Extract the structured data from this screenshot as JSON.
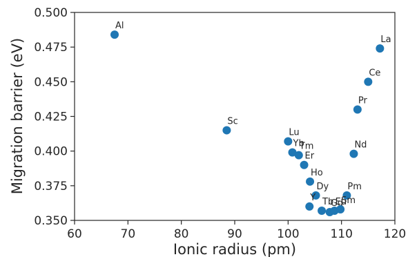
{
  "chart_data": {
    "type": "scatter",
    "title": "",
    "xlabel": "Ionic radius (pm)",
    "ylabel": "Migration barrier (eV)",
    "xlim": [
      60,
      120
    ],
    "ylim": [
      0.35,
      0.5
    ],
    "xticks": [
      60,
      70,
      80,
      90,
      100,
      110,
      120
    ],
    "yticks": [
      0.35,
      0.375,
      0.4,
      0.425,
      0.45,
      0.475,
      0.5
    ],
    "ytick_labels": [
      "0.350",
      "0.375",
      "0.400",
      "0.425",
      "0.450",
      "0.475",
      "0.500"
    ],
    "grid": false,
    "color": "#1f77b4",
    "points": [
      {
        "label": "Al",
        "x": 67.5,
        "y": 0.484
      },
      {
        "label": "La",
        "x": 117.2,
        "y": 0.474
      },
      {
        "label": "Ce",
        "x": 115.0,
        "y": 0.45
      },
      {
        "label": "Pr",
        "x": 113.0,
        "y": 0.43
      },
      {
        "label": "Sc",
        "x": 88.5,
        "y": 0.415
      },
      {
        "label": "Lu",
        "x": 100.0,
        "y": 0.407
      },
      {
        "label": "Yb",
        "x": 100.8,
        "y": 0.399
      },
      {
        "label": "Tm",
        "x": 102.0,
        "y": 0.397
      },
      {
        "label": "Nd",
        "x": 112.3,
        "y": 0.398
      },
      {
        "label": "Er",
        "x": 103.0,
        "y": 0.39
      },
      {
        "label": "Ho",
        "x": 104.1,
        "y": 0.378
      },
      {
        "label": "Dy",
        "x": 105.2,
        "y": 0.368
      },
      {
        "label": "Pm",
        "x": 111.0,
        "y": 0.368
      },
      {
        "label": "Y",
        "x": 104.0,
        "y": 0.36
      },
      {
        "label": "Tb",
        "x": 106.3,
        "y": 0.357
      },
      {
        "label": "Gd",
        "x": 107.8,
        "y": 0.356
      },
      {
        "label": "Eu",
        "x": 108.7,
        "y": 0.357
      },
      {
        "label": "Sm",
        "x": 109.8,
        "y": 0.358
      }
    ]
  }
}
